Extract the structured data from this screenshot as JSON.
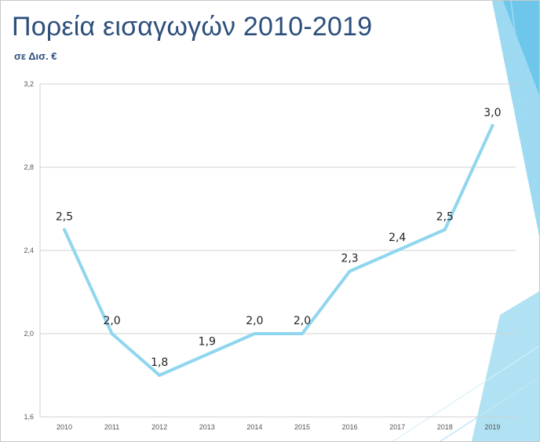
{
  "slide": {
    "title": "Πορεία εισαγωγών 2010-2019",
    "subtitle": "σε Δισ. €"
  },
  "colors": {
    "line": "#8fd6ee",
    "grid": "#d0d0d0",
    "title": "#2d4f7c",
    "accent": "#5bc0e8"
  },
  "chart_data": {
    "type": "line",
    "title": "Πορεία εισαγωγών 2010-2019",
    "subtitle": "σε Δισ. €",
    "xlabel": "",
    "ylabel": "",
    "categories": [
      "2010",
      "2011",
      "2012",
      "2013",
      "2014",
      "2015",
      "2016",
      "2017",
      "2018",
      "2019"
    ],
    "series": [
      {
        "values": [
          2.5,
          2.0,
          1.8,
          1.9,
          2.0,
          2.0,
          2.3,
          2.4,
          2.5,
          3.0
        ],
        "labels": [
          "2,5",
          "2,0",
          "1,8",
          "1,9",
          "2,0",
          "2,0",
          "2,3",
          "2,4",
          "2,5",
          "3,0"
        ]
      }
    ],
    "ylim": [
      1.6,
      3.2
    ],
    "yticks": [
      1.6,
      2.0,
      2.4,
      2.8,
      3.2
    ],
    "ytick_labels": [
      "1,6",
      "2,0",
      "2,4",
      "2,8",
      "3,2"
    ],
    "grid": true,
    "legend": "none"
  }
}
